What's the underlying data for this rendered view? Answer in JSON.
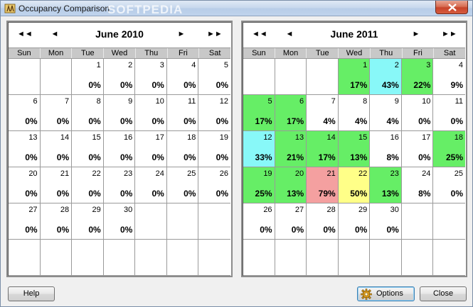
{
  "window": {
    "title": "Occupancy Comparison",
    "watermark": "SOFTPEDIA"
  },
  "colors": {
    "green": "#66ee66",
    "cyan": "#88f8f8",
    "red": "#f4a0a0",
    "yellow": "#ffff88",
    "white": "#ffffff"
  },
  "weekdays": [
    "Sun",
    "Mon",
    "Tue",
    "Wed",
    "Thu",
    "Fri",
    "Sat"
  ],
  "calendars": [
    {
      "month_label": "June 2010",
      "nav": {
        "prev_year": "◄◄",
        "prev_month": "◄",
        "next_month": "►",
        "next_year": "►►"
      },
      "cells": [
        {
          "day": "",
          "pct": "",
          "color": "white"
        },
        {
          "day": "",
          "pct": "",
          "color": "white"
        },
        {
          "day": "1",
          "pct": "0%",
          "color": "white"
        },
        {
          "day": "2",
          "pct": "0%",
          "color": "white"
        },
        {
          "day": "3",
          "pct": "0%",
          "color": "white"
        },
        {
          "day": "4",
          "pct": "0%",
          "color": "white"
        },
        {
          "day": "5",
          "pct": "0%",
          "color": "white"
        },
        {
          "day": "6",
          "pct": "0%",
          "color": "white"
        },
        {
          "day": "7",
          "pct": "0%",
          "color": "white"
        },
        {
          "day": "8",
          "pct": "0%",
          "color": "white"
        },
        {
          "day": "9",
          "pct": "0%",
          "color": "white"
        },
        {
          "day": "10",
          "pct": "0%",
          "color": "white"
        },
        {
          "day": "11",
          "pct": "0%",
          "color": "white"
        },
        {
          "day": "12",
          "pct": "0%",
          "color": "white"
        },
        {
          "day": "13",
          "pct": "0%",
          "color": "white"
        },
        {
          "day": "14",
          "pct": "0%",
          "color": "white"
        },
        {
          "day": "15",
          "pct": "0%",
          "color": "white"
        },
        {
          "day": "16",
          "pct": "0%",
          "color": "white"
        },
        {
          "day": "17",
          "pct": "0%",
          "color": "white"
        },
        {
          "day": "18",
          "pct": "0%",
          "color": "white"
        },
        {
          "day": "19",
          "pct": "0%",
          "color": "white"
        },
        {
          "day": "20",
          "pct": "0%",
          "color": "white"
        },
        {
          "day": "21",
          "pct": "0%",
          "color": "white"
        },
        {
          "day": "22",
          "pct": "0%",
          "color": "white"
        },
        {
          "day": "23",
          "pct": "0%",
          "color": "white"
        },
        {
          "day": "24",
          "pct": "0%",
          "color": "white"
        },
        {
          "day": "25",
          "pct": "0%",
          "color": "white"
        },
        {
          "day": "26",
          "pct": "0%",
          "color": "white"
        },
        {
          "day": "27",
          "pct": "0%",
          "color": "white"
        },
        {
          "day": "28",
          "pct": "0%",
          "color": "white"
        },
        {
          "day": "29",
          "pct": "0%",
          "color": "white"
        },
        {
          "day": "30",
          "pct": "0%",
          "color": "white"
        },
        {
          "day": "",
          "pct": "",
          "color": "white"
        },
        {
          "day": "",
          "pct": "",
          "color": "white"
        },
        {
          "day": "",
          "pct": "",
          "color": "white"
        },
        {
          "day": "",
          "pct": "",
          "color": "white"
        },
        {
          "day": "",
          "pct": "",
          "color": "white"
        },
        {
          "day": "",
          "pct": "",
          "color": "white"
        },
        {
          "day": "",
          "pct": "",
          "color": "white"
        },
        {
          "day": "",
          "pct": "",
          "color": "white"
        },
        {
          "day": "",
          "pct": "",
          "color": "white"
        },
        {
          "day": "",
          "pct": "",
          "color": "white"
        }
      ]
    },
    {
      "month_label": "June 2011",
      "nav": {
        "prev_year": "◄◄",
        "prev_month": "◄",
        "next_month": "►",
        "next_year": "►►"
      },
      "cells": [
        {
          "day": "",
          "pct": "",
          "color": "white"
        },
        {
          "day": "",
          "pct": "",
          "color": "white"
        },
        {
          "day": "",
          "pct": "",
          "color": "white"
        },
        {
          "day": "1",
          "pct": "17%",
          "color": "green"
        },
        {
          "day": "2",
          "pct": "43%",
          "color": "cyan"
        },
        {
          "day": "3",
          "pct": "22%",
          "color": "green"
        },
        {
          "day": "4",
          "pct": "9%",
          "color": "white"
        },
        {
          "day": "5",
          "pct": "17%",
          "color": "green"
        },
        {
          "day": "6",
          "pct": "17%",
          "color": "green"
        },
        {
          "day": "7",
          "pct": "4%",
          "color": "white"
        },
        {
          "day": "8",
          "pct": "4%",
          "color": "white"
        },
        {
          "day": "9",
          "pct": "4%",
          "color": "white"
        },
        {
          "day": "10",
          "pct": "0%",
          "color": "white"
        },
        {
          "day": "11",
          "pct": "0%",
          "color": "white"
        },
        {
          "day": "12",
          "pct": "33%",
          "color": "cyan"
        },
        {
          "day": "13",
          "pct": "21%",
          "color": "green"
        },
        {
          "day": "14",
          "pct": "17%",
          "color": "green"
        },
        {
          "day": "15",
          "pct": "13%",
          "color": "green"
        },
        {
          "day": "16",
          "pct": "8%",
          "color": "white"
        },
        {
          "day": "17",
          "pct": "0%",
          "color": "white"
        },
        {
          "day": "18",
          "pct": "25%",
          "color": "green"
        },
        {
          "day": "19",
          "pct": "25%",
          "color": "green"
        },
        {
          "day": "20",
          "pct": "13%",
          "color": "green"
        },
        {
          "day": "21",
          "pct": "79%",
          "color": "red"
        },
        {
          "day": "22",
          "pct": "50%",
          "color": "yellow"
        },
        {
          "day": "23",
          "pct": "13%",
          "color": "green"
        },
        {
          "day": "24",
          "pct": "8%",
          "color": "white"
        },
        {
          "day": "25",
          "pct": "0%",
          "color": "white"
        },
        {
          "day": "26",
          "pct": "0%",
          "color": "white"
        },
        {
          "day": "27",
          "pct": "0%",
          "color": "white"
        },
        {
          "day": "28",
          "pct": "0%",
          "color": "white"
        },
        {
          "day": "29",
          "pct": "0%",
          "color": "white"
        },
        {
          "day": "30",
          "pct": "0%",
          "color": "white"
        },
        {
          "day": "",
          "pct": "",
          "color": "white"
        },
        {
          "day": "",
          "pct": "",
          "color": "white"
        },
        {
          "day": "",
          "pct": "",
          "color": "white"
        },
        {
          "day": "",
          "pct": "",
          "color": "white"
        },
        {
          "day": "",
          "pct": "",
          "color": "white"
        },
        {
          "day": "",
          "pct": "",
          "color": "white"
        },
        {
          "day": "",
          "pct": "",
          "color": "white"
        },
        {
          "day": "",
          "pct": "",
          "color": "white"
        },
        {
          "day": "",
          "pct": "",
          "color": "white"
        }
      ]
    }
  ],
  "buttons": {
    "help": "Help",
    "options": "Options",
    "options_icon": "gear-icon",
    "close": "Close"
  }
}
